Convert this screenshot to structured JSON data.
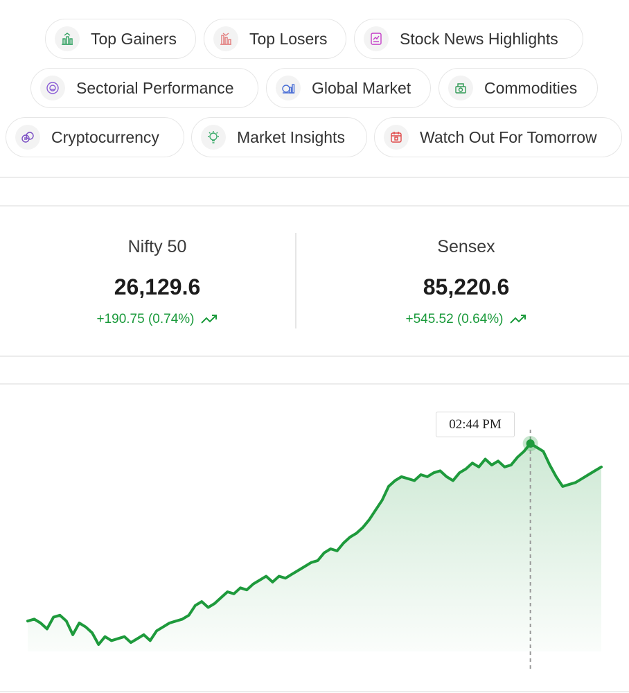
{
  "chips": [
    {
      "label": "Top Gainers",
      "icon": "top-gainers-icon"
    },
    {
      "label": "Top Losers",
      "icon": "top-losers-icon"
    },
    {
      "label": "Stock News Highlights",
      "icon": "news-icon"
    },
    {
      "label": "Sectorial Performance",
      "icon": "pie-icon"
    },
    {
      "label": "Global Market",
      "icon": "globe-chart-icon"
    },
    {
      "label": "Commodities",
      "icon": "commodities-icon"
    },
    {
      "label": "Cryptocurrency",
      "icon": "crypto-icon"
    },
    {
      "label": "Market Insights",
      "icon": "insights-icon"
    },
    {
      "label": "Watch Out For Tomorrow",
      "icon": "calendar-icon"
    }
  ],
  "indices": [
    {
      "name": "Nifty 50",
      "value": "26,129.6",
      "change": "+190.75 (0.74%)"
    },
    {
      "name": "Sensex",
      "value": "85,220.6",
      "change": "+545.52 (0.64%)"
    }
  ],
  "colors": {
    "positive": "#1a9a3b",
    "line": "#1e9a3c"
  },
  "chart_data": {
    "type": "area",
    "tooltip_time": "02:44 PM",
    "hovered_index": 78,
    "values": [
      10,
      11,
      9,
      6,
      12,
      13,
      10,
      3,
      9,
      7,
      4,
      -2,
      2,
      0,
      1,
      2,
      -1,
      1,
      3,
      0,
      5,
      7,
      9,
      10,
      11,
      13,
      18,
      20,
      17,
      19,
      22,
      25,
      24,
      27,
      26,
      29,
      31,
      33,
      30,
      33,
      32,
      34,
      36,
      38,
      40,
      41,
      45,
      47,
      46,
      50,
      53,
      55,
      58,
      62,
      67,
      72,
      79,
      82,
      84,
      83,
      82,
      85,
      84,
      86,
      87,
      84,
      82,
      86,
      88,
      91,
      89,
      93,
      90,
      92,
      89,
      90,
      94,
      97,
      101,
      99,
      97,
      90,
      84,
      79,
      80,
      81,
      83,
      85,
      87,
      89
    ]
  }
}
